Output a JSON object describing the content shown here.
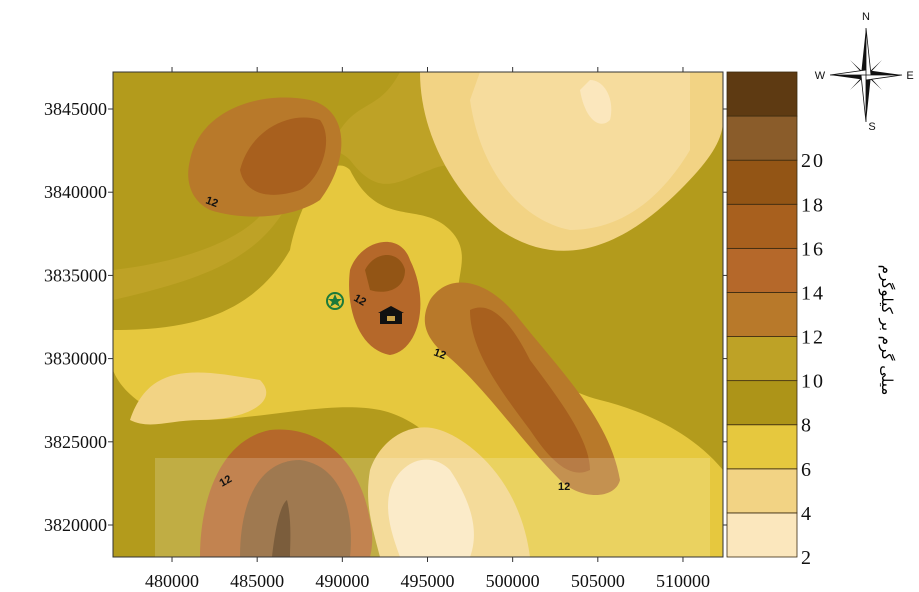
{
  "map": {
    "xlim": [
      476535,
      512350
    ],
    "ylim": [
      3818077,
      3847224
    ],
    "xticks": [
      480000,
      485000,
      490000,
      495000,
      500000,
      505000,
      510000
    ],
    "yticks": [
      3820000,
      3825000,
      3830000,
      3835000,
      3840000,
      3845000
    ],
    "contour_labels": [
      "12",
      "12",
      "12",
      "12",
      "12"
    ]
  },
  "legend": {
    "title": "میلی گرم بر کیلوگرم",
    "levels": [
      2,
      4,
      6,
      8,
      10,
      12,
      14,
      16,
      18,
      20
    ],
    "colors": [
      "#fbe7bd",
      "#f2d384",
      "#e6c83e",
      "#ad9418",
      "#bea226",
      "#b8792a",
      "#b5682a",
      "#a8601e",
      "#935515",
      "#8a5c2a",
      "#5e3a12"
    ]
  },
  "compass": {
    "north": "N",
    "south": "S",
    "east": "E",
    "west": "W"
  }
}
